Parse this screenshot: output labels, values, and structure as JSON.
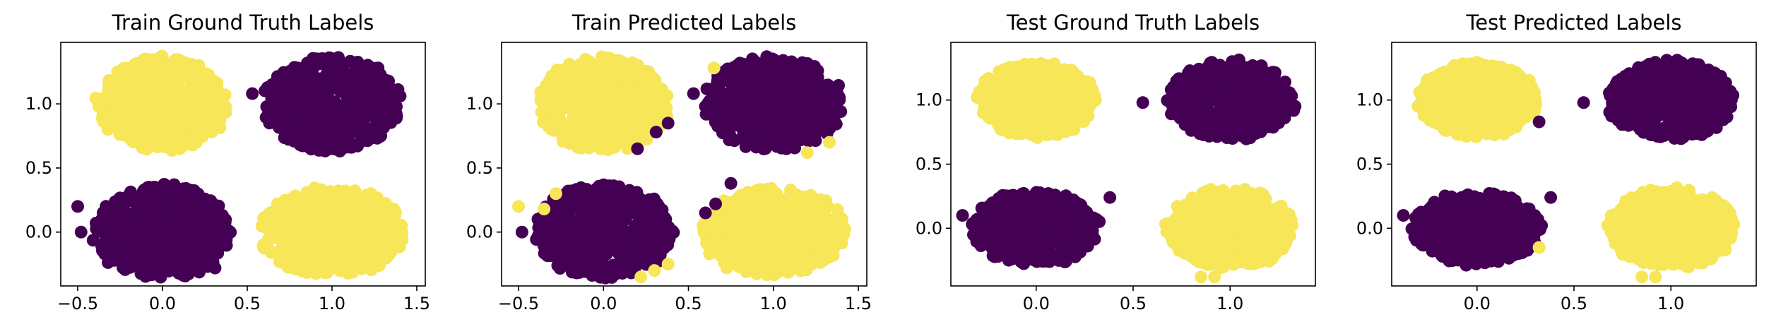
{
  "colors": {
    "cluster0": "#440154",
    "cluster1": "#f6e658"
  },
  "chart_data": [
    {
      "type": "scatter",
      "title": "Train Ground Truth Labels",
      "xlim": [
        -0.6,
        1.55
      ],
      "ylim": [
        -0.42,
        1.48
      ],
      "xticks": [
        -0.5,
        0.0,
        0.5,
        1.0,
        1.5
      ],
      "xtick_labels": [
        "−0.5",
        "0.0",
        "0.5",
        "1.0",
        "1.5"
      ],
      "yticks": [
        0.0,
        0.5,
        1.0
      ],
      "ytick_labels": [
        "0.0",
        "0.5",
        "1.0"
      ],
      "clusters": [
        {
          "cx": 0.0,
          "cy": 1.0,
          "rx": 0.4,
          "ry": 0.38,
          "label": 1
        },
        {
          "cx": 1.0,
          "cy": 1.0,
          "rx": 0.42,
          "ry": 0.38,
          "label": 0
        },
        {
          "cx": 0.0,
          "cy": 0.0,
          "rx": 0.42,
          "ry": 0.38,
          "label": 0
        },
        {
          "cx": 1.0,
          "cy": 0.0,
          "rx": 0.44,
          "ry": 0.36,
          "label": 1
        }
      ],
      "outliers": [
        {
          "x": 0.53,
          "y": 1.08,
          "label": 0
        },
        {
          "x": -0.5,
          "y": 0.2,
          "label": 0
        },
        {
          "x": -0.48,
          "y": 0.0,
          "label": 0
        },
        {
          "x": 0.31,
          "y": -0.28,
          "label": 0
        }
      ]
    },
    {
      "type": "scatter",
      "title": "Train Predicted Labels",
      "xlim": [
        -0.6,
        1.55
      ],
      "ylim": [
        -0.42,
        1.48
      ],
      "xticks": [
        -0.5,
        0.0,
        0.5,
        1.0,
        1.5
      ],
      "xtick_labels": [
        "−0.5",
        "0.0",
        "0.5",
        "1.0",
        "1.5"
      ],
      "yticks": [
        0.0,
        0.5,
        1.0
      ],
      "ytick_labels": [
        "0.0",
        "0.5",
        "1.0"
      ],
      "clusters": [
        {
          "cx": 0.0,
          "cy": 1.0,
          "rx": 0.4,
          "ry": 0.38,
          "label": 1
        },
        {
          "cx": 1.0,
          "cy": 1.0,
          "rx": 0.42,
          "ry": 0.38,
          "label": 0
        },
        {
          "cx": 0.0,
          "cy": 0.0,
          "rx": 0.42,
          "ry": 0.38,
          "label": 0
        },
        {
          "cx": 1.0,
          "cy": 0.0,
          "rx": 0.44,
          "ry": 0.36,
          "label": 1
        }
      ],
      "outliers": [
        {
          "x": 0.53,
          "y": 1.08,
          "label": 0
        },
        {
          "x": -0.5,
          "y": 0.2,
          "label": 1
        },
        {
          "x": -0.48,
          "y": 0.0,
          "label": 0
        },
        {
          "x": 0.65,
          "y": 1.28,
          "label": 1
        },
        {
          "x": 0.38,
          "y": 0.85,
          "label": 0
        },
        {
          "x": 0.31,
          "y": 0.78,
          "label": 0
        },
        {
          "x": 0.2,
          "y": 0.65,
          "label": 0
        },
        {
          "x": 0.75,
          "y": 0.38,
          "label": 0
        },
        {
          "x": 0.66,
          "y": 0.22,
          "label": 0
        },
        {
          "x": 0.6,
          "y": 0.15,
          "label": 0
        },
        {
          "x": -0.28,
          "y": 0.3,
          "label": 1
        },
        {
          "x": -0.35,
          "y": 0.18,
          "label": 1
        },
        {
          "x": 1.2,
          "y": 0.62,
          "label": 1
        },
        {
          "x": 1.33,
          "y": 0.7,
          "label": 1
        },
        {
          "x": 0.3,
          "y": -0.3,
          "label": 1
        },
        {
          "x": 0.22,
          "y": -0.35,
          "label": 1
        },
        {
          "x": 0.38,
          "y": -0.25,
          "label": 1
        }
      ]
    },
    {
      "type": "scatter",
      "title": "Test Ground Truth Labels",
      "xlim": [
        -0.44,
        1.44
      ],
      "ylim": [
        -0.45,
        1.45
      ],
      "xticks": [
        0.0,
        0.5,
        1.0
      ],
      "xtick_labels": [
        "0.0",
        "0.5",
        "1.0"
      ],
      "yticks": [
        0.0,
        0.5,
        1.0
      ],
      "ytick_labels": [
        "0.0",
        "0.5",
        "1.0"
      ],
      "clusters": [
        {
          "cx": 0.0,
          "cy": 1.0,
          "rx": 0.32,
          "ry": 0.3,
          "label": 1
        },
        {
          "cx": 1.0,
          "cy": 1.0,
          "rx": 0.34,
          "ry": 0.32,
          "label": 0
        },
        {
          "cx": 0.0,
          "cy": 0.0,
          "rx": 0.34,
          "ry": 0.3,
          "label": 0
        },
        {
          "cx": 1.0,
          "cy": 0.0,
          "rx": 0.34,
          "ry": 0.32,
          "label": 1
        }
      ],
      "outliers": [
        {
          "x": 0.55,
          "y": 0.98,
          "label": 0
        },
        {
          "x": 0.38,
          "y": 0.24,
          "label": 0
        },
        {
          "x": -0.38,
          "y": 0.1,
          "label": 0
        },
        {
          "x": 0.85,
          "y": -0.38,
          "label": 1
        },
        {
          "x": 0.92,
          "y": -0.38,
          "label": 1
        }
      ]
    },
    {
      "type": "scatter",
      "title": "Test Predicted Labels",
      "xlim": [
        -0.44,
        1.44
      ],
      "ylim": [
        -0.45,
        1.45
      ],
      "xticks": [
        0.0,
        0.5,
        1.0
      ],
      "xtick_labels": [
        "0.0",
        "0.5",
        "1.0"
      ],
      "yticks": [
        0.0,
        0.5,
        1.0
      ],
      "ytick_labels": [
        "0.0",
        "0.5",
        "1.0"
      ],
      "clusters": [
        {
          "cx": 0.0,
          "cy": 1.0,
          "rx": 0.32,
          "ry": 0.3,
          "label": 1
        },
        {
          "cx": 1.0,
          "cy": 1.0,
          "rx": 0.34,
          "ry": 0.32,
          "label": 0
        },
        {
          "cx": 0.0,
          "cy": 0.0,
          "rx": 0.34,
          "ry": 0.3,
          "label": 0
        },
        {
          "cx": 1.0,
          "cy": 0.0,
          "rx": 0.34,
          "ry": 0.32,
          "label": 1
        }
      ],
      "outliers": [
        {
          "x": 0.55,
          "y": 0.98,
          "label": 0
        },
        {
          "x": 0.38,
          "y": 0.24,
          "label": 0
        },
        {
          "x": -0.38,
          "y": 0.1,
          "label": 0
        },
        {
          "x": 0.32,
          "y": 0.83,
          "label": 0
        },
        {
          "x": 0.32,
          "y": -0.15,
          "label": 1
        },
        {
          "x": 0.85,
          "y": -0.38,
          "label": 1
        },
        {
          "x": 0.92,
          "y": -0.38,
          "label": 1
        }
      ]
    }
  ]
}
